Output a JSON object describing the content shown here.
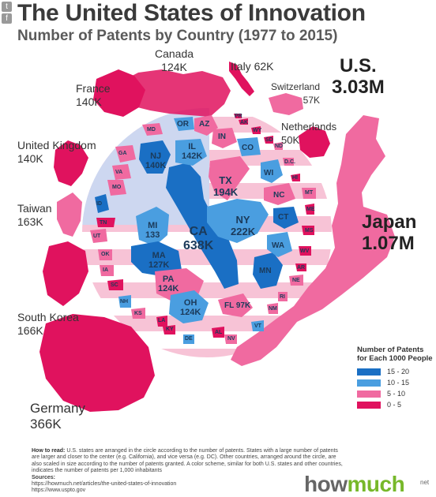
{
  "title": "The United States of Innovation",
  "subtitle": "Number of Patents by Country (1977 to 2015)",
  "share_icons": [
    "twitter-icon",
    "facebook-icon"
  ],
  "countries": [
    {
      "id": "canada",
      "name": "Canada",
      "value": "124K"
    },
    {
      "id": "italy",
      "name": "Italy",
      "value": "62K"
    },
    {
      "id": "us",
      "name": "U.S.",
      "value": "3.03M"
    },
    {
      "id": "switzerland",
      "name": "Switzerland",
      "value": "57K"
    },
    {
      "id": "netherlands",
      "name": "Netherlands",
      "value": "50K"
    },
    {
      "id": "france",
      "name": "France",
      "value": "140K"
    },
    {
      "id": "uk",
      "name": "United Kingdom",
      "value": "140K"
    },
    {
      "id": "taiwan",
      "name": "Taiwan",
      "value": "163K"
    },
    {
      "id": "japan",
      "name": "Japan",
      "value": "1.07M"
    },
    {
      "id": "southkorea",
      "name": "South Korea",
      "value": "166K"
    },
    {
      "id": "germany",
      "name": "Germany",
      "value": "366K"
    }
  ],
  "states": [
    {
      "code": "CA",
      "value": "638K",
      "tier": "15-20"
    },
    {
      "code": "NY",
      "value": "222K",
      "tier": "10-15"
    },
    {
      "code": "TX",
      "value": "194K",
      "tier": "5-10"
    },
    {
      "code": "IL",
      "value": "142K",
      "tier": "10-15"
    },
    {
      "code": "NJ",
      "value": "140K",
      "tier": "15-20"
    },
    {
      "code": "MI",
      "value": "133",
      "tier": "10-15"
    },
    {
      "code": "MA",
      "value": "127K",
      "tier": "15-20"
    },
    {
      "code": "PA",
      "value": "124K",
      "tier": "5-10"
    },
    {
      "code": "OH",
      "value": "124K",
      "tier": "10-15"
    },
    {
      "code": "FL",
      "value": "97K",
      "tier": "0-5"
    },
    {
      "code": "MN",
      "value": "",
      "tier": "15-20"
    },
    {
      "code": "WA",
      "value": "",
      "tier": "10-15"
    },
    {
      "code": "CT",
      "value": "",
      "tier": "15-20"
    },
    {
      "code": "WI",
      "value": "",
      "tier": "10-15"
    },
    {
      "code": "CO",
      "value": "",
      "tier": "10-15"
    },
    {
      "code": "NC",
      "value": "",
      "tier": "5-10"
    },
    {
      "code": "AZ",
      "value": "",
      "tier": "5-10"
    },
    {
      "code": "OR",
      "value": "",
      "tier": "10-15"
    },
    {
      "code": "IN",
      "value": "",
      "tier": "5-10"
    },
    {
      "code": "GA",
      "value": "",
      "tier": "5-10"
    },
    {
      "code": "MD",
      "value": "",
      "tier": "5-10"
    },
    {
      "code": "VA",
      "value": "",
      "tier": "5-10"
    },
    {
      "code": "MO",
      "value": "",
      "tier": "5-10"
    },
    {
      "code": "ID",
      "value": "",
      "tier": "15-20"
    },
    {
      "code": "UT",
      "value": "",
      "tier": "5-10"
    },
    {
      "code": "TN",
      "value": "",
      "tier": "0-5"
    },
    {
      "code": "OK",
      "value": "",
      "tier": "5-10"
    },
    {
      "code": "IA",
      "value": "",
      "tier": "5-10"
    },
    {
      "code": "SC",
      "value": "",
      "tier": "0-5"
    },
    {
      "code": "NH",
      "value": "",
      "tier": "10-15"
    },
    {
      "code": "KS",
      "value": "",
      "tier": "5-10"
    },
    {
      "code": "LA",
      "value": "",
      "tier": "0-5"
    },
    {
      "code": "KY",
      "value": "",
      "tier": "0-5"
    },
    {
      "code": "DE",
      "value": "",
      "tier": "10-15"
    },
    {
      "code": "AL",
      "value": "",
      "tier": "0-5"
    },
    {
      "code": "NV",
      "value": "",
      "tier": "5-10"
    },
    {
      "code": "VT",
      "value": "",
      "tier": "10-15"
    },
    {
      "code": "NM",
      "value": "",
      "tier": "5-10"
    },
    {
      "code": "RI",
      "value": "",
      "tier": "5-10"
    },
    {
      "code": "NE",
      "value": "",
      "tier": "5-10"
    },
    {
      "code": "AR",
      "value": "",
      "tier": "0-5"
    },
    {
      "code": "WV",
      "value": "",
      "tier": "0-5"
    },
    {
      "code": "MS",
      "value": "",
      "tier": "0-5"
    },
    {
      "code": "ME",
      "value": "",
      "tier": "0-5"
    },
    {
      "code": "MT",
      "value": "",
      "tier": "5-10"
    },
    {
      "code": "HI",
      "value": "",
      "tier": "0-5"
    },
    {
      "code": "D.C.",
      "value": "",
      "tier": "5-10"
    },
    {
      "code": "ND",
      "value": "",
      "tier": "5-10"
    },
    {
      "code": "SD",
      "value": "",
      "tier": "0-5"
    },
    {
      "code": "WY",
      "value": "",
      "tier": "0-5"
    },
    {
      "code": "AK",
      "value": "",
      "tier": "0-5"
    },
    {
      "code": "PR",
      "value": "",
      "tier": "0-5"
    }
  ],
  "legend": {
    "title": "Number of Patents for Each 1000 People",
    "items": [
      {
        "label": "15 - 20",
        "color": "#1a6fc4"
      },
      {
        "label": "10 - 15",
        "color": "#4a9ee0"
      },
      {
        "label": "5 - 10",
        "color": "#f06aa0"
      },
      {
        "label": "0 - 5",
        "color": "#e0125e"
      }
    ]
  },
  "colors": {
    "dark_blue": "#1a6fc4",
    "light_blue": "#4a9ee0",
    "pink": "#f06aa0",
    "hot_pink": "#e0125e",
    "flag_stripe": "#f7c3d6",
    "flag_canton": "#cdd7f0"
  },
  "note": {
    "how_to_read_label": "How to read:",
    "how_to_read": "U.S. states are arranged in the circle according to the number of patents. States with a large number of patents are larger and closer to the center (e.g. California), and vice versa (e.g. DC). Other countries, arranged around the circle, are also scaled in size according to the number of patents granted. A color scheme, similar for both U.S. states and other countries, indicates the number of patents per 1,000 inhabitants",
    "sources_label": "Sources:",
    "sources": [
      "https://howmuch.net/articles/the-united-states-of-innovation",
      "https://www.uspto.gov"
    ]
  },
  "brand": {
    "pre": "how",
    "highlight": "much",
    "suffix": "net"
  }
}
